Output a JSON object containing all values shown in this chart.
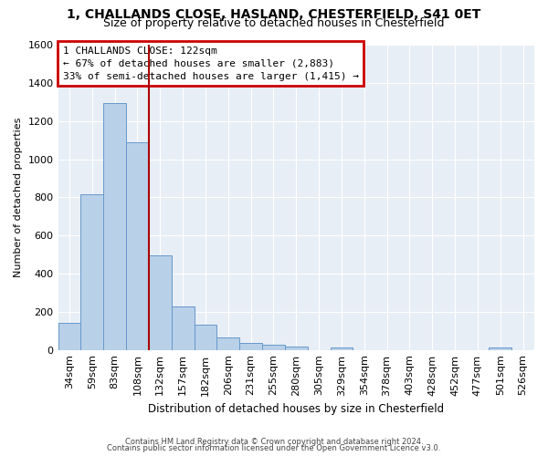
{
  "title_line1": "1, CHALLANDS CLOSE, HASLAND, CHESTERFIELD, S41 0ET",
  "title_line2": "Size of property relative to detached houses in Chesterfield",
  "xlabel": "Distribution of detached houses by size in Chesterfield",
  "ylabel": "Number of detached properties",
  "footer_line1": "Contains HM Land Registry data © Crown copyright and database right 2024.",
  "footer_line2": "Contains public sector information licensed under the Open Government Licence v3.0.",
  "annotation_line1": "1 CHALLANDS CLOSE: 122sqm",
  "annotation_line2": "← 67% of detached houses are smaller (2,883)",
  "annotation_line3": "33% of semi-detached houses are larger (1,415) →",
  "bar_color": "#b8d0e8",
  "bar_edge_color": "#6699cc",
  "annotation_box_color": "#cc0000",
  "vline_color": "#aa0000",
  "background_color": "#e8eef5",
  "categories": [
    "34sqm",
    "59sqm",
    "83sqm",
    "108sqm",
    "132sqm",
    "157sqm",
    "182sqm",
    "206sqm",
    "231sqm",
    "255sqm",
    "280sqm",
    "305sqm",
    "329sqm",
    "354sqm",
    "378sqm",
    "403sqm",
    "428sqm",
    "452sqm",
    "477sqm",
    "501sqm",
    "526sqm"
  ],
  "values": [
    140,
    815,
    1295,
    1090,
    495,
    230,
    130,
    65,
    38,
    25,
    16,
    0,
    15,
    0,
    0,
    0,
    0,
    0,
    0,
    13,
    0
  ],
  "ylim": [
    0,
    1600
  ],
  "yticks": [
    0,
    200,
    400,
    600,
    800,
    1000,
    1200,
    1400,
    1600
  ],
  "grid_color": "#ffffff",
  "vline_position": 3.5,
  "title_fontsize": 10,
  "subtitle_fontsize": 9,
  "ylabel_fontsize": 8,
  "xlabel_fontsize": 8.5,
  "tick_fontsize": 8,
  "annot_fontsize": 8,
  "footer_fontsize": 6
}
